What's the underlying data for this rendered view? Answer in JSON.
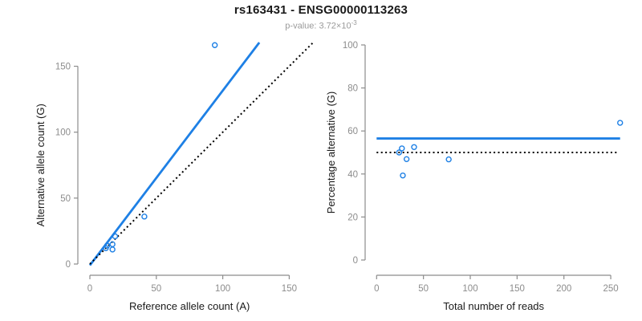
{
  "header": {
    "title": "rs163431 - ENSG00000113263",
    "pvalue_prefix": "p-value: ",
    "pvalue_mantissa": "3.72×10",
    "pvalue_exponent": "-3"
  },
  "colors": {
    "accent_blue": "#1e80e5",
    "dotted_black": "#000000",
    "axis_gray": "#8c8c8c",
    "tick_text_gray": "#8c8c8c",
    "title_text": "#1a1a1a",
    "subtitle_gray": "#9a9a9a",
    "background": "#ffffff"
  },
  "chart_data": [
    {
      "type": "scatter",
      "panel": "left",
      "xlabel": "Reference allele count (A)",
      "ylabel": "Alternative allele count (G)",
      "xticks": [
        0,
        50,
        100,
        150
      ],
      "yticks": [
        0,
        50,
        100,
        150
      ],
      "xlim": [
        0,
        167
      ],
      "ylim": [
        0,
        168
      ],
      "grid": false,
      "legend": false,
      "points": [
        [
          12,
          12
        ],
        [
          13,
          14
        ],
        [
          17,
          11
        ],
        [
          17,
          15
        ],
        [
          19,
          21
        ],
        [
          41,
          36
        ],
        [
          94,
          166
        ]
      ],
      "lines": [
        {
          "name": "fit-line",
          "style": "solid",
          "color": "#1e80e5",
          "from": [
            0,
            -1
          ],
          "to": [
            127.5,
            168
          ]
        },
        {
          "name": "identity-line",
          "style": "dotted",
          "color": "#000000",
          "from": [
            0,
            0
          ],
          "to": [
            167.5,
            167.5
          ]
        }
      ]
    },
    {
      "type": "scatter",
      "panel": "right",
      "xlabel": "Total number of reads",
      "ylabel": "Percentage alternative (G)",
      "xticks": [
        0,
        50,
        100,
        150,
        200,
        250
      ],
      "yticks": [
        0,
        20,
        40,
        60,
        80,
        100
      ],
      "xlim": [
        0,
        262
      ],
      "ylim": [
        0,
        100
      ],
      "grid": false,
      "legend": false,
      "points": [
        [
          24,
          50
        ],
        [
          27,
          51.9
        ],
        [
          28,
          39.3
        ],
        [
          32,
          46.9
        ],
        [
          40,
          52.5
        ],
        [
          77,
          46.8
        ],
        [
          260,
          63.8
        ]
      ],
      "lines": [
        {
          "name": "mean-percentage-line",
          "style": "solid",
          "color": "#1e80e5",
          "from": [
            0,
            56.5
          ],
          "to": [
            260,
            56.5
          ]
        },
        {
          "name": "null-50-percent-line",
          "style": "dotted",
          "color": "#000000",
          "from": [
            0,
            50
          ],
          "to": [
            257,
            50
          ]
        }
      ]
    }
  ]
}
